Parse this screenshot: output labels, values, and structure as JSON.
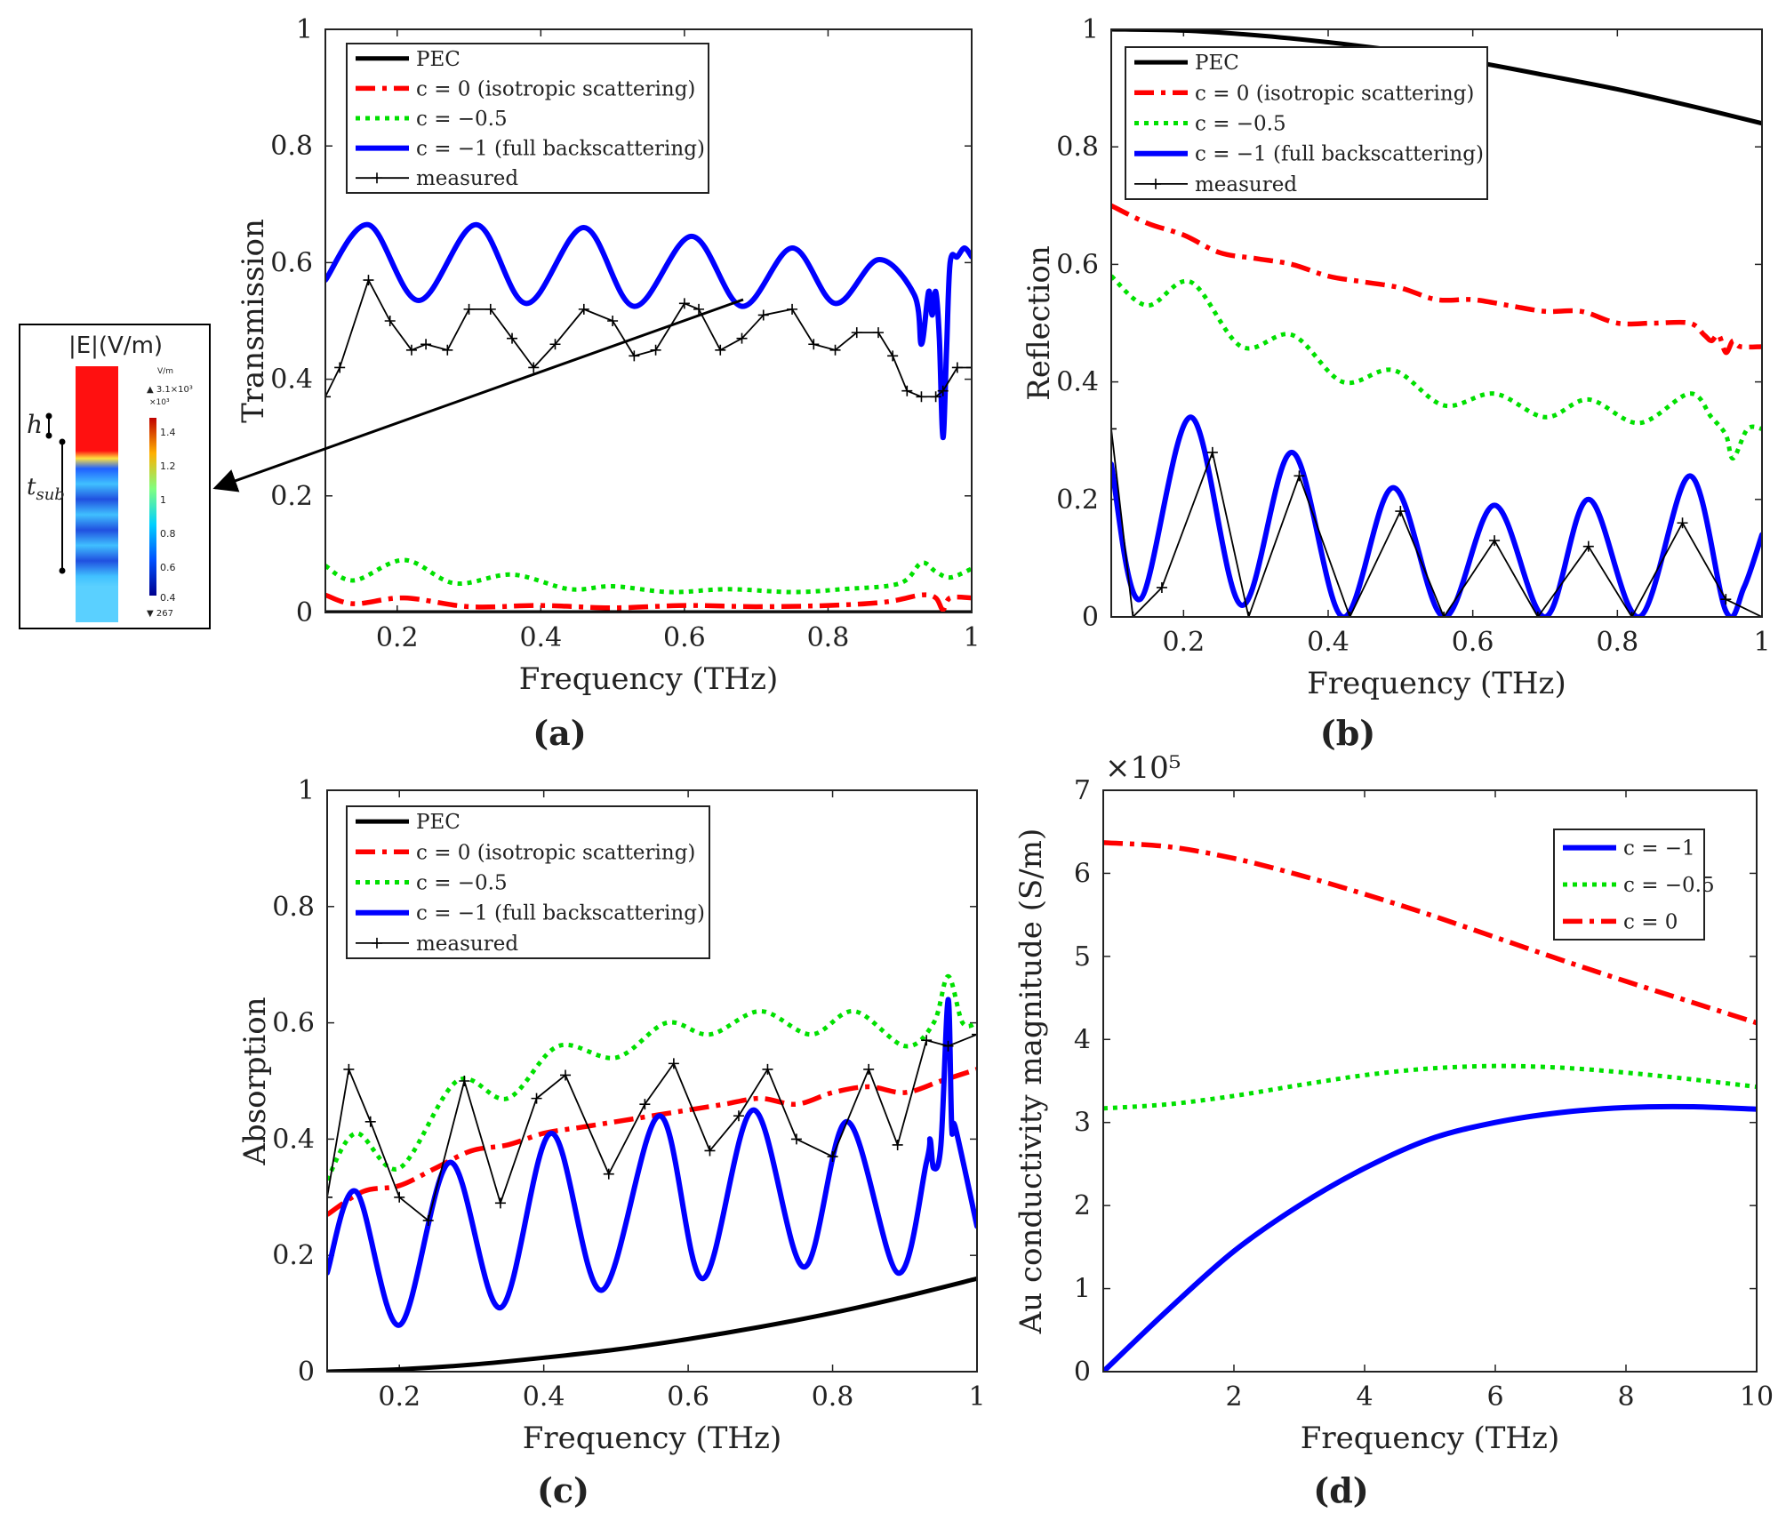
{
  "captions": [
    "(a)",
    "(b)",
    "(c)",
    "(d)"
  ],
  "inset": {
    "title": "|E|(V/m)",
    "label_h": "h",
    "label_tsub": "t",
    "label_tsub_sub": "sub",
    "colorbar_unit": "V/m",
    "colorbar_max": "▲ 3.1×10³",
    "colorbar_exp": "×10³",
    "colorbar_ticks": [
      "1.4",
      "1.2",
      "1",
      "0.8",
      "0.6",
      "0.4"
    ],
    "colorbar_min": "▼ 267"
  },
  "chart_data": [
    {
      "id": "a",
      "type": "line",
      "title": "",
      "xlabel": "Frequency (THz)",
      "ylabel": "Transmission",
      "xlim": [
        0.1,
        1.0
      ],
      "ylim": [
        0,
        1
      ],
      "xticks": [
        0.2,
        0.4,
        0.6,
        0.8,
        1
      ],
      "xtick_labels": [
        "0.2",
        "0.4",
        "0.6",
        "0.8",
        "1"
      ],
      "yticks": [
        0,
        0.2,
        0.4,
        0.6,
        0.8,
        1
      ],
      "ytick_labels": [
        "0",
        "0.2",
        "0.4",
        "0.6",
        "0.8",
        "1"
      ],
      "legend_position": "top-left",
      "legend": [
        "PEC",
        "c = 0 (isotropic scattering)",
        "c = −0.5",
        "c = −1 (full backscattering)",
        "measured"
      ],
      "series": [
        {
          "name": "PEC",
          "color": "#000000",
          "style": "solid",
          "x": [
            0.1,
            1.0
          ],
          "y": [
            0.0,
            0.0
          ]
        },
        {
          "name": "c = 0 (isotropic scattering)",
          "color": "#ff0000",
          "style": "dashdot",
          "x": [
            0.1,
            0.14,
            0.21,
            0.3,
            0.4,
            0.5,
            0.6,
            0.7,
            0.8,
            0.88,
            0.93,
            0.95,
            0.96,
            0.97,
            1.0
          ],
          "y": [
            0.03,
            0.015,
            0.025,
            0.01,
            0.012,
            0.008,
            0.012,
            0.01,
            0.012,
            0.018,
            0.03,
            0.025,
            0.005,
            0.025,
            0.025
          ]
        },
        {
          "name": "c = −0.5",
          "color": "#00e000",
          "style": "dotted",
          "x": [
            0.1,
            0.14,
            0.21,
            0.28,
            0.36,
            0.44,
            0.5,
            0.58,
            0.66,
            0.75,
            0.82,
            0.9,
            0.93,
            0.95,
            0.97,
            1.0
          ],
          "y": [
            0.08,
            0.055,
            0.09,
            0.05,
            0.065,
            0.04,
            0.045,
            0.035,
            0.04,
            0.035,
            0.04,
            0.05,
            0.085,
            0.07,
            0.06,
            0.075
          ]
        },
        {
          "name": "c = −1 (full backscattering)",
          "color": "#0000ff",
          "style": "solid",
          "x": [
            0.1,
            0.16,
            0.23,
            0.31,
            0.38,
            0.46,
            0.53,
            0.61,
            0.68,
            0.75,
            0.81,
            0.87,
            0.92,
            0.93,
            0.94,
            0.945,
            0.95,
            0.955,
            0.96,
            0.965,
            0.97,
            0.98,
            0.99,
            1.0
          ],
          "y": [
            0.57,
            0.665,
            0.535,
            0.665,
            0.53,
            0.66,
            0.525,
            0.645,
            0.525,
            0.625,
            0.53,
            0.605,
            0.545,
            0.46,
            0.55,
            0.51,
            0.55,
            0.47,
            0.3,
            0.45,
            0.6,
            0.61,
            0.625,
            0.61
          ]
        },
        {
          "name": "measured",
          "color": "#000000",
          "style": "solid",
          "markers": true,
          "x": [
            0.1,
            0.12,
            0.16,
            0.19,
            0.22,
            0.24,
            0.27,
            0.3,
            0.33,
            0.36,
            0.39,
            0.42,
            0.46,
            0.5,
            0.53,
            0.56,
            0.6,
            0.62,
            0.65,
            0.68,
            0.71,
            0.75,
            0.78,
            0.81,
            0.84,
            0.87,
            0.89,
            0.91,
            0.93,
            0.95,
            0.96,
            0.98,
            1.0
          ],
          "y": [
            0.37,
            0.42,
            0.57,
            0.5,
            0.45,
            0.46,
            0.45,
            0.52,
            0.52,
            0.47,
            0.42,
            0.46,
            0.52,
            0.5,
            0.44,
            0.45,
            0.53,
            0.52,
            0.45,
            0.47,
            0.51,
            0.52,
            0.46,
            0.45,
            0.48,
            0.48,
            0.44,
            0.38,
            0.37,
            0.37,
            0.38,
            0.42,
            0.42
          ]
        }
      ]
    },
    {
      "id": "b",
      "type": "line",
      "title": "",
      "xlabel": "Frequency (THz)",
      "ylabel": "Reflection",
      "xlim": [
        0.1,
        1.0
      ],
      "ylim": [
        0,
        1
      ],
      "xticks": [
        0.2,
        0.4,
        0.6,
        0.8,
        1
      ],
      "xtick_labels": [
        "0.2",
        "0.4",
        "0.6",
        "0.8",
        "1"
      ],
      "yticks": [
        0,
        0.2,
        0.4,
        0.6,
        0.8,
        1
      ],
      "ytick_labels": [
        "0",
        "0.2",
        "0.4",
        "0.6",
        "0.8",
        "1"
      ],
      "legend_position": "top-left",
      "legend": [
        "PEC",
        "c = 0 (isotropic scattering)",
        "c = −0.5",
        "c = −1 (full backscattering)",
        "measured"
      ],
      "series": [
        {
          "name": "PEC",
          "color": "#000000",
          "style": "solid",
          "x": [
            0.1,
            0.2,
            0.3,
            0.4,
            0.5,
            0.6,
            0.7,
            0.8,
            0.9,
            1.0
          ],
          "y": [
            1.0,
            0.998,
            0.99,
            0.978,
            0.963,
            0.945,
            0.922,
            0.898,
            0.87,
            0.84
          ]
        },
        {
          "name": "c = 0 (isotropic scattering)",
          "color": "#ff0000",
          "style": "dashdot",
          "x": [
            0.1,
            0.15,
            0.2,
            0.25,
            0.3,
            0.35,
            0.4,
            0.45,
            0.5,
            0.55,
            0.6,
            0.65,
            0.7,
            0.75,
            0.8,
            0.85,
            0.9,
            0.92,
            0.93,
            0.94,
            0.95,
            0.96,
            0.97,
            1.0
          ],
          "y": [
            0.7,
            0.67,
            0.65,
            0.62,
            0.61,
            0.6,
            0.58,
            0.57,
            0.56,
            0.54,
            0.54,
            0.53,
            0.52,
            0.52,
            0.5,
            0.5,
            0.5,
            0.48,
            0.47,
            0.48,
            0.45,
            0.47,
            0.46,
            0.46
          ]
        },
        {
          "name": "c = −0.5",
          "color": "#00e000",
          "style": "dotted",
          "x": [
            0.1,
            0.15,
            0.21,
            0.28,
            0.35,
            0.42,
            0.49,
            0.56,
            0.63,
            0.7,
            0.76,
            0.83,
            0.9,
            0.93,
            0.95,
            0.96,
            0.98,
            1.0
          ],
          "y": [
            0.58,
            0.53,
            0.57,
            0.46,
            0.48,
            0.4,
            0.42,
            0.36,
            0.38,
            0.34,
            0.37,
            0.33,
            0.38,
            0.34,
            0.31,
            0.27,
            0.32,
            0.32
          ]
        },
        {
          "name": "c = −1 (full backscattering)",
          "color": "#0000ff",
          "style": "solid",
          "x": [
            0.1,
            0.14,
            0.21,
            0.28,
            0.35,
            0.42,
            0.49,
            0.56,
            0.63,
            0.7,
            0.76,
            0.83,
            0.9,
            0.95,
            0.975,
            1.0
          ],
          "y": [
            0.26,
            0.03,
            0.34,
            0.02,
            0.28,
            0.0,
            0.22,
            0.0,
            0.19,
            0.0,
            0.2,
            0.0,
            0.24,
            0.01,
            0.05,
            0.14
          ]
        },
        {
          "name": "measured",
          "color": "#000000",
          "style": "solid",
          "markers": true,
          "x": [
            0.1,
            0.13,
            0.17,
            0.24,
            0.29,
            0.36,
            0.43,
            0.5,
            0.56,
            0.63,
            0.69,
            0.76,
            0.82,
            0.89,
            0.95,
            1.0
          ],
          "y": [
            0.32,
            0.0,
            0.05,
            0.28,
            0.0,
            0.24,
            0.0,
            0.18,
            0.0,
            0.13,
            0.0,
            0.12,
            0.0,
            0.16,
            0.03,
            0.0
          ]
        }
      ]
    },
    {
      "id": "c",
      "type": "line",
      "title": "",
      "xlabel": "Frequency (THz)",
      "ylabel": "Absorption",
      "xlim": [
        0.1,
        1.0
      ],
      "ylim": [
        0,
        1
      ],
      "xticks": [
        0.2,
        0.4,
        0.6,
        0.8,
        1
      ],
      "xtick_labels": [
        "0.2",
        "0.4",
        "0.6",
        "0.8",
        "1"
      ],
      "yticks": [
        0,
        0.2,
        0.4,
        0.6,
        0.8,
        1
      ],
      "ytick_labels": [
        "0",
        "0.2",
        "0.4",
        "0.6",
        "0.8",
        "1"
      ],
      "legend_position": "top-left",
      "legend": [
        "PEC",
        "c = 0 (isotropic scattering)",
        "c = −0.5",
        "c = −1 (full backscattering)",
        "measured"
      ],
      "series": [
        {
          "name": "PEC",
          "color": "#000000",
          "style": "solid",
          "x": [
            0.1,
            0.2,
            0.3,
            0.4,
            0.5,
            0.6,
            0.7,
            0.8,
            0.9,
            1.0
          ],
          "y": [
            0.0,
            0.004,
            0.012,
            0.024,
            0.038,
            0.056,
            0.077,
            0.101,
            0.129,
            0.16
          ]
        },
        {
          "name": "c = 0 (isotropic scattering)",
          "color": "#ff0000",
          "style": "dashdot",
          "x": [
            0.1,
            0.15,
            0.2,
            0.25,
            0.3,
            0.35,
            0.4,
            0.45,
            0.5,
            0.55,
            0.6,
            0.65,
            0.7,
            0.75,
            0.8,
            0.85,
            0.9,
            0.95,
            1.0
          ],
          "y": [
            0.27,
            0.31,
            0.32,
            0.35,
            0.38,
            0.39,
            0.41,
            0.42,
            0.43,
            0.44,
            0.45,
            0.46,
            0.47,
            0.46,
            0.48,
            0.49,
            0.48,
            0.5,
            0.52
          ]
        },
        {
          "name": "c = −0.5",
          "color": "#00e000",
          "style": "dotted",
          "x": [
            0.1,
            0.14,
            0.2,
            0.28,
            0.35,
            0.42,
            0.5,
            0.57,
            0.63,
            0.7,
            0.77,
            0.83,
            0.9,
            0.94,
            0.96,
            0.98,
            1.0
          ],
          "y": [
            0.33,
            0.41,
            0.35,
            0.5,
            0.47,
            0.56,
            0.54,
            0.6,
            0.58,
            0.62,
            0.58,
            0.62,
            0.56,
            0.6,
            0.68,
            0.6,
            0.6
          ]
        },
        {
          "name": "c = −1 (full backscattering)",
          "color": "#0000ff",
          "style": "solid",
          "x": [
            0.1,
            0.14,
            0.2,
            0.27,
            0.34,
            0.41,
            0.48,
            0.56,
            0.62,
            0.69,
            0.76,
            0.82,
            0.89,
            0.93,
            0.935,
            0.94,
            0.95,
            0.96,
            0.965,
            0.97,
            1.0
          ],
          "y": [
            0.17,
            0.31,
            0.08,
            0.36,
            0.11,
            0.41,
            0.14,
            0.44,
            0.16,
            0.45,
            0.18,
            0.43,
            0.17,
            0.36,
            0.4,
            0.35,
            0.39,
            0.64,
            0.42,
            0.42,
            0.25
          ]
        },
        {
          "name": "measured",
          "color": "#000000",
          "style": "solid",
          "markers": true,
          "x": [
            0.1,
            0.13,
            0.16,
            0.2,
            0.24,
            0.29,
            0.34,
            0.39,
            0.43,
            0.49,
            0.54,
            0.58,
            0.63,
            0.67,
            0.71,
            0.75,
            0.8,
            0.85,
            0.89,
            0.93,
            0.96,
            1.0
          ],
          "y": [
            0.3,
            0.52,
            0.43,
            0.3,
            0.26,
            0.5,
            0.29,
            0.47,
            0.51,
            0.34,
            0.46,
            0.53,
            0.38,
            0.44,
            0.52,
            0.4,
            0.37,
            0.52,
            0.39,
            0.57,
            0.56,
            0.58
          ]
        }
      ]
    },
    {
      "id": "d",
      "type": "line",
      "title": "",
      "xlabel": "Frequency (THz)",
      "ylabel": "Au conductivity magnitude (S/m)",
      "axis_multiplier": "×10⁵",
      "xlim": [
        0,
        10
      ],
      "ylim": [
        0,
        7
      ],
      "xticks": [
        2,
        4,
        6,
        8,
        10
      ],
      "xtick_labels": [
        "2",
        "4",
        "6",
        "8",
        "10"
      ],
      "yticks": [
        0,
        1,
        2,
        3,
        4,
        5,
        6,
        7
      ],
      "ytick_labels": [
        "0",
        "1",
        "2",
        "3",
        "4",
        "5",
        "6",
        "7"
      ],
      "legend_position": "top-right",
      "legend": [
        "c = −1",
        "c = −0.5",
        "c = 0"
      ],
      "series": [
        {
          "name": "c = −1",
          "color": "#0000ff",
          "style": "solid",
          "x": [
            0,
            1,
            2,
            3,
            4,
            5,
            6,
            7,
            8,
            9,
            10
          ],
          "y": [
            0.0,
            0.75,
            1.45,
            2.0,
            2.45,
            2.8,
            3.0,
            3.12,
            3.18,
            3.19,
            3.16
          ]
        },
        {
          "name": "c = −0.5",
          "color": "#00e000",
          "style": "dotted",
          "x": [
            0,
            1,
            2,
            3,
            4,
            5,
            6,
            7,
            8,
            9,
            10
          ],
          "y": [
            3.17,
            3.22,
            3.32,
            3.45,
            3.57,
            3.65,
            3.68,
            3.66,
            3.6,
            3.52,
            3.43
          ]
        },
        {
          "name": "c = 0",
          "color": "#ff0000",
          "style": "dashdot",
          "x": [
            0,
            1,
            2,
            3,
            4,
            5,
            6,
            7,
            8,
            9,
            10
          ],
          "y": [
            6.37,
            6.32,
            6.18,
            5.98,
            5.75,
            5.5,
            5.23,
            4.96,
            4.7,
            4.45,
            4.2
          ]
        }
      ]
    }
  ]
}
